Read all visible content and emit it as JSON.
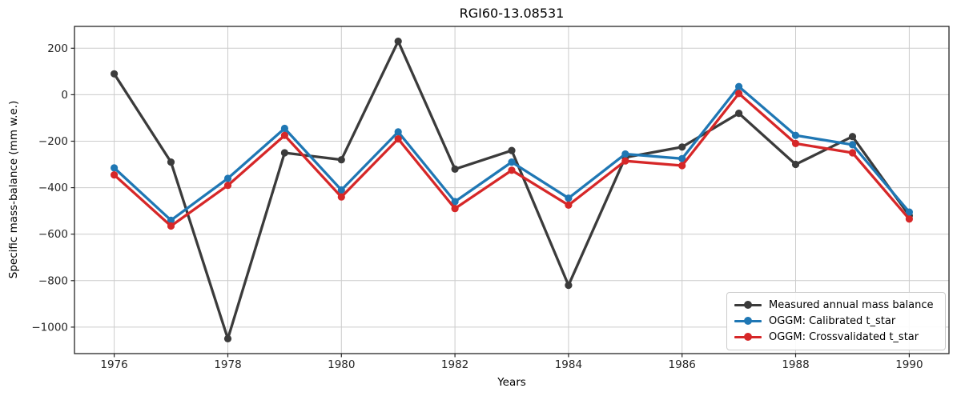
{
  "chart_data": {
    "type": "line",
    "title": "RGI60-13.08531",
    "xlabel": "Years",
    "ylabel": "Specific mass-balance (mm w.e.)",
    "x": [
      1976,
      1977,
      1978,
      1979,
      1980,
      1981,
      1982,
      1983,
      1984,
      1985,
      1986,
      1987,
      1988,
      1989,
      1990
    ],
    "series": [
      {
        "name": "Measured annual mass balance",
        "color": "#3b3b3b",
        "values": [
          90,
          -290,
          -1050,
          -250,
          -280,
          230,
          -320,
          -240,
          -820,
          -270,
          -225,
          -80,
          -300,
          -180,
          -520
        ]
      },
      {
        "name": "OGGM: Calibrated t_star",
        "color": "#1f77b4",
        "values": [
          -315,
          -540,
          -360,
          -145,
          -410,
          -160,
          -460,
          -290,
          -445,
          -255,
          -275,
          35,
          -175,
          -215,
          -505
        ]
      },
      {
        "name": "OGGM: Crossvalidated t_star",
        "color": "#d62728",
        "values": [
          -345,
          -565,
          -390,
          -175,
          -440,
          -190,
          -490,
          -325,
          -475,
          -285,
          -305,
          5,
          -210,
          -250,
          -535
        ]
      }
    ],
    "xlim": [
      1975.3,
      1990.7
    ],
    "ylim": [
      -1114,
      294
    ],
    "xticks": {
      "values": [
        1976,
        1978,
        1980,
        1982,
        1984,
        1986,
        1988,
        1990
      ],
      "labels": [
        "1976",
        "1978",
        "1980",
        "1982",
        "1984",
        "1986",
        "1988",
        "1990"
      ]
    },
    "yticks": {
      "values": [
        200,
        0,
        -200,
        -400,
        -600,
        -800,
        -1000
      ],
      "labels": [
        "200",
        "0",
        "−200",
        "−400",
        "−600",
        "−800",
        "−1000"
      ]
    },
    "grid": true,
    "grid_color": "#cccccc",
    "spine_color": "#262626",
    "tick_label_color": "#262626",
    "legend_position": "lower right"
  }
}
